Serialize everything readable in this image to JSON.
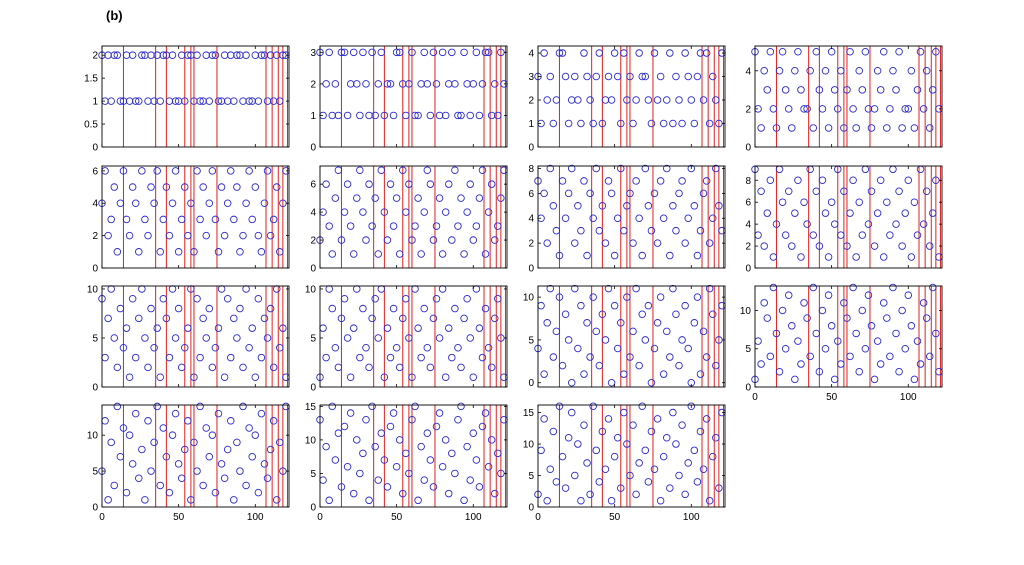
{
  "figure": {
    "label": "(b)"
  },
  "chart_data": {
    "type": "scatter",
    "marker": "open-circle",
    "marker_color": "#2b2bd0",
    "line_color": "#e0201e",
    "grid": false,
    "x_range": [
      0,
      122
    ],
    "x_ticks": [
      0,
      50,
      100
    ],
    "vertical_lines_x": [
      14,
      35,
      42,
      54,
      58,
      60,
      75,
      107,
      111,
      115,
      118,
      121
    ],
    "x_values": [
      0,
      2,
      4,
      6,
      8,
      10,
      12,
      14,
      16,
      18,
      20,
      22,
      24,
      26,
      28,
      30,
      32,
      34,
      36,
      38,
      40,
      42,
      44,
      46,
      48,
      50,
      52,
      54,
      56,
      58,
      60,
      62,
      64,
      66,
      68,
      70,
      72,
      74,
      76,
      78,
      80,
      82,
      84,
      86,
      88,
      90,
      92,
      94,
      96,
      98,
      100,
      102,
      104,
      106,
      108,
      110,
      112,
      114,
      116,
      118,
      120
    ],
    "subplots": [
      {
        "ylim": [
          0,
          2.2
        ],
        "yticks": [
          0,
          0.5,
          1,
          1.5,
          2
        ],
        "ytick_labels": [
          "0",
          "0.5",
          "1",
          "1.5",
          "2"
        ],
        "show_x_ticks": false,
        "y": [
          2,
          1,
          2,
          1,
          2,
          2,
          1,
          1,
          2,
          1,
          2,
          1,
          1,
          2,
          2,
          1,
          2,
          1,
          2,
          1,
          2,
          2,
          1,
          2,
          1,
          1,
          2,
          1,
          2,
          2,
          1,
          2,
          1,
          1,
          2,
          1,
          2,
          2,
          1,
          1,
          2,
          1,
          2,
          1,
          2,
          2,
          1,
          2,
          1,
          1,
          2,
          1,
          2,
          2,
          1,
          2,
          1,
          2,
          1,
          2,
          2
        ]
      },
      {
        "ylim": [
          0,
          3.2
        ],
        "yticks": [
          0,
          1,
          2,
          3
        ],
        "ytick_labels": [
          "0",
          "1",
          "2",
          "3"
        ],
        "show_x_ticks": false,
        "y": [
          3,
          1,
          2,
          3,
          1,
          2,
          1,
          3,
          3,
          1,
          2,
          3,
          2,
          1,
          3,
          2,
          1,
          3,
          1,
          2,
          3,
          1,
          2,
          2,
          1,
          3,
          3,
          2,
          1,
          2,
          3,
          1,
          1,
          2,
          3,
          2,
          1,
          3,
          2,
          1,
          3,
          1,
          2,
          3,
          2,
          1,
          1,
          3,
          2,
          1,
          2,
          3,
          1,
          2,
          3,
          3,
          1,
          2,
          1,
          3,
          2
        ]
      },
      {
        "ylim": [
          0,
          4.3
        ],
        "yticks": [
          0,
          1,
          2,
          3,
          4
        ],
        "ytick_labels": [
          "0",
          "1",
          "2",
          "3",
          "4"
        ],
        "show_x_ticks": false,
        "y": [
          3,
          1,
          4,
          2,
          3,
          1,
          2,
          4,
          4,
          3,
          1,
          2,
          3,
          2,
          1,
          4,
          3,
          2,
          1,
          3,
          4,
          1,
          2,
          3,
          2,
          4,
          3,
          1,
          4,
          2,
          3,
          1,
          2,
          4,
          3,
          3,
          2,
          1,
          4,
          2,
          3,
          1,
          2,
          4,
          1,
          3,
          2,
          1,
          4,
          3,
          2,
          1,
          3,
          4,
          2,
          4,
          1,
          3,
          2,
          1,
          4
        ]
      },
      {
        "ylim": [
          0,
          5.3
        ],
        "yticks": [
          0,
          2,
          4
        ],
        "ytick_labels": [
          "0",
          "2",
          "4"
        ],
        "show_x_ticks": false,
        "y": [
          5,
          2,
          1,
          4,
          3,
          5,
          2,
          1,
          4,
          5,
          3,
          2,
          1,
          4,
          5,
          3,
          2,
          2,
          4,
          1,
          5,
          3,
          2,
          4,
          1,
          5,
          3,
          2,
          4,
          1,
          3,
          5,
          2,
          1,
          4,
          3,
          5,
          2,
          1,
          2,
          4,
          3,
          5,
          1,
          2,
          4,
          3,
          5,
          1,
          2,
          2,
          4,
          1,
          3,
          5,
          2,
          4,
          1,
          3,
          5,
          2
        ]
      },
      {
        "ylim": [
          0,
          6.3
        ],
        "yticks": [
          0,
          2,
          4,
          6
        ],
        "ytick_labels": [
          "0",
          "2",
          "4",
          "6"
        ],
        "show_x_ticks": false,
        "y": [
          4,
          6,
          2,
          3,
          5,
          1,
          4,
          6,
          3,
          2,
          5,
          4,
          1,
          6,
          3,
          2,
          5,
          4,
          6,
          1,
          3,
          5,
          2,
          4,
          6,
          1,
          3,
          5,
          2,
          4,
          1,
          6,
          3,
          5,
          2,
          4,
          6,
          3,
          1,
          5,
          2,
          4,
          6,
          3,
          5,
          1,
          2,
          4,
          6,
          3,
          5,
          2,
          1,
          4,
          6,
          2,
          3,
          5,
          1,
          4,
          6
        ]
      },
      {
        "ylim": [
          0,
          7.3
        ],
        "yticks": [
          0,
          2,
          4,
          6
        ],
        "ytick_labels": [
          "0",
          "2",
          "4",
          "6"
        ],
        "show_x_ticks": false,
        "y": [
          2,
          4,
          6,
          3,
          1,
          5,
          7,
          2,
          4,
          6,
          3,
          1,
          5,
          7,
          4,
          2,
          6,
          3,
          5,
          1,
          7,
          4,
          2,
          6,
          3,
          5,
          1,
          7,
          4,
          6,
          2,
          3,
          5,
          1,
          4,
          7,
          6,
          2,
          3,
          5,
          1,
          4,
          6,
          2,
          7,
          3,
          5,
          1,
          4,
          6,
          2,
          3,
          5,
          7,
          1,
          4,
          6,
          2,
          3,
          5,
          7
        ]
      },
      {
        "ylim": [
          0,
          8.2
        ],
        "yticks": [
          0,
          2,
          4,
          6,
          8
        ],
        "ytick_labels": [
          "0",
          "2",
          "4",
          "6",
          "8"
        ],
        "show_x_ticks": false,
        "y": [
          7,
          4,
          6,
          2,
          8,
          5,
          3,
          1,
          7,
          4,
          6,
          8,
          2,
          5,
          3,
          7,
          1,
          6,
          4,
          8,
          3,
          5,
          2,
          7,
          6,
          1,
          4,
          8,
          3,
          5,
          6,
          2,
          7,
          4,
          1,
          8,
          5,
          3,
          6,
          2,
          7,
          4,
          8,
          1,
          5,
          3,
          6,
          7,
          2,
          4,
          8,
          5,
          1,
          3,
          6,
          7,
          2,
          4,
          8,
          5,
          3
        ]
      },
      {
        "ylim": [
          0,
          9.3
        ],
        "yticks": [
          0,
          2,
          4,
          6,
          8
        ],
        "ytick_labels": [
          "0",
          "2",
          "4",
          "6",
          "8"
        ],
        "show_x_ticks": false,
        "y": [
          9,
          3,
          7,
          2,
          5,
          8,
          1,
          4,
          9,
          6,
          3,
          7,
          2,
          5,
          8,
          1,
          6,
          4,
          9,
          3,
          7,
          2,
          8,
          5,
          1,
          6,
          4,
          9,
          3,
          7,
          2,
          5,
          8,
          1,
          6,
          3,
          9,
          4,
          7,
          2,
          5,
          8,
          1,
          6,
          3,
          9,
          4,
          7,
          2,
          5,
          8,
          1,
          6,
          3,
          9,
          4,
          7,
          2,
          5,
          8,
          1
        ]
      },
      {
        "ylim": [
          0,
          10.3
        ],
        "yticks": [
          0,
          5,
          10
        ],
        "ytick_labels": [
          "0",
          "5",
          "10"
        ],
        "show_x_ticks": false,
        "y": [
          9,
          3,
          7,
          10,
          5,
          2,
          8,
          4,
          6,
          1,
          9,
          3,
          7,
          10,
          5,
          2,
          8,
          4,
          6,
          1,
          9,
          7,
          3,
          10,
          5,
          8,
          2,
          4,
          6,
          10,
          1,
          9,
          3,
          7,
          5,
          8,
          2,
          4,
          6,
          10,
          1,
          9,
          3,
          7,
          5,
          8,
          2,
          10,
          4,
          6,
          1,
          9,
          3,
          7,
          5,
          8,
          2,
          10,
          4,
          6,
          1
        ]
      },
      {
        "ylim": [
          0,
          10.3
        ],
        "yticks": [
          0,
          5,
          10
        ],
        "ytick_labels": [
          "0",
          "5",
          "10"
        ],
        "show_x_ticks": false,
        "y": [
          1,
          6,
          3,
          10,
          8,
          4,
          2,
          7,
          9,
          5,
          1,
          6,
          10,
          3,
          8,
          4,
          2,
          7,
          9,
          5,
          10,
          1,
          6,
          3,
          8,
          4,
          2,
          7,
          9,
          5,
          1,
          10,
          6,
          3,
          8,
          4,
          2,
          7,
          9,
          5,
          10,
          1,
          6,
          3,
          8,
          4,
          2,
          7,
          9,
          5,
          1,
          10,
          6,
          3,
          8,
          4,
          2,
          7,
          9,
          5,
          1
        ]
      },
      {
        "ylim": [
          -0.5,
          11.3
        ],
        "yticks": [
          0,
          5,
          10
        ],
        "ytick_labels": [
          "0",
          "5",
          "10"
        ],
        "show_x_ticks": false,
        "y": [
          4,
          9,
          1,
          7,
          11,
          3,
          6,
          10,
          2,
          8,
          5,
          0,
          11,
          4,
          9,
          1,
          7,
          3,
          10,
          6,
          2,
          8,
          5,
          11,
          0,
          9,
          4,
          7,
          1,
          10,
          3,
          6,
          11,
          2,
          8,
          5,
          9,
          0,
          4,
          7,
          10,
          1,
          6,
          3,
          11,
          8,
          2,
          5,
          9,
          4,
          0,
          7,
          10,
          1,
          6,
          3,
          11,
          8,
          2,
          5,
          9
        ]
      },
      {
        "ylim": [
          0,
          13.2
        ],
        "yticks": [
          0,
          5,
          10
        ],
        "ytick_labels": [
          "0",
          "5",
          "10"
        ],
        "show_x_ticks": true,
        "y": [
          1,
          6,
          3,
          11,
          9,
          4,
          13,
          7,
          2,
          10,
          5,
          12,
          8,
          1,
          6,
          3,
          11,
          9,
          4,
          13,
          7,
          2,
          10,
          5,
          12,
          8,
          1,
          6,
          3,
          11,
          9,
          4,
          13,
          7,
          2,
          10,
          5,
          12,
          8,
          1,
          6,
          3,
          11,
          9,
          4,
          13,
          7,
          2,
          10,
          5,
          12,
          8,
          1,
          6,
          3,
          11,
          9,
          4,
          13,
          7,
          2
        ]
      },
      {
        "ylim": [
          0,
          14.2
        ],
        "yticks": [
          0,
          5,
          10
        ],
        "ytick_labels": [
          "0",
          "5",
          "10"
        ],
        "show_x_ticks": true,
        "y": [
          5,
          12,
          1,
          9,
          3,
          14,
          7,
          11,
          2,
          10,
          6,
          13,
          4,
          8,
          1,
          12,
          5,
          9,
          14,
          3,
          11,
          7,
          2,
          10,
          13,
          6,
          4,
          8,
          12,
          1,
          9,
          5,
          14,
          3,
          11,
          7,
          10,
          2,
          13,
          6,
          4,
          8,
          12,
          1,
          9,
          5,
          14,
          3,
          11,
          7,
          10,
          2,
          13,
          6,
          4,
          8,
          12,
          1,
          9,
          5,
          14
        ]
      },
      {
        "ylim": [
          0,
          15.2
        ],
        "yticks": [
          0,
          5,
          10,
          15
        ],
        "ytick_labels": [
          "0",
          "5",
          "10",
          "15"
        ],
        "show_x_ticks": true,
        "y": [
          13,
          4,
          9,
          1,
          15,
          7,
          11,
          3,
          12,
          6,
          14,
          2,
          10,
          5,
          8,
          13,
          1,
          15,
          9,
          4,
          11,
          7,
          3,
          12,
          14,
          6,
          10,
          2,
          8,
          5,
          13,
          15,
          1,
          9,
          4,
          11,
          7,
          3,
          12,
          14,
          6,
          10,
          2,
          8,
          5,
          13,
          15,
          1,
          9,
          4,
          11,
          7,
          3,
          12,
          14,
          6,
          10,
          2,
          8,
          5,
          13
        ]
      },
      {
        "ylim": [
          0,
          16.2
        ],
        "yticks": [
          0,
          5,
          10,
          15
        ],
        "ytick_labels": [
          "0",
          "5",
          "10",
          "15"
        ],
        "show_x_ticks": true,
        "y": [
          2,
          9,
          14,
          1,
          6,
          12,
          4,
          16,
          8,
          3,
          11,
          15,
          5,
          10,
          1,
          13,
          7,
          2,
          16,
          9,
          4,
          12,
          6,
          14,
          1,
          8,
          11,
          3,
          15,
          10,
          5,
          13,
          2,
          7,
          16,
          9,
          4,
          12,
          6,
          14,
          1,
          8,
          11,
          3,
          15,
          10,
          5,
          13,
          2,
          7,
          16,
          9,
          4,
          12,
          6,
          14,
          1,
          8,
          11,
          3,
          15
        ]
      }
    ]
  }
}
